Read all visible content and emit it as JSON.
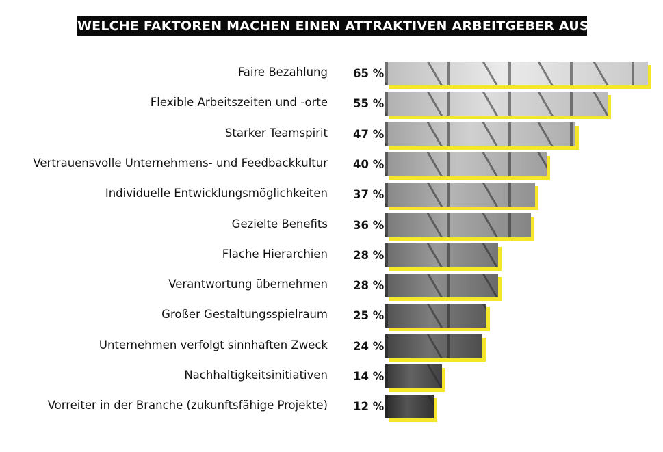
{
  "chart_data": {
    "type": "bar",
    "orientation": "horizontal",
    "title": "WELCHE FAKTOREN MACHEN EINEN ATTRAKTIVEN ARBEITGEBER AUS?",
    "categories": [
      "Faire Bezahlung",
      "Flexible Arbeitszeiten und -orte",
      "Starker Teamspirit",
      "Vertrauensvolle Unternehmens- und Feedbackkultur",
      "Individuelle Entwicklungsmöglichkeiten",
      "Gezielte Benefits",
      "Flache Hierarchien",
      "Verantwortung übernehmen",
      "Großer Gestaltungsspielraum",
      "Unternehmen verfolgt sinnhaften Zweck",
      "Nachhaltigkeitsinitiativen",
      "Vorreiter in der Branche (zukunftsfähige Projekte)"
    ],
    "values": [
      65,
      55,
      47,
      40,
      37,
      36,
      28,
      28,
      25,
      24,
      14,
      12
    ],
    "value_labels": [
      "65 %",
      "55 %",
      "47 %",
      "40 %",
      "37 %",
      "36 %",
      "28 %",
      "28 %",
      "25 %",
      "24 %",
      "14 %",
      "12 %"
    ],
    "xlim": [
      0,
      65
    ],
    "unit": "%",
    "grid": false,
    "legend": "none",
    "colors": {
      "shadow": "#f6e629",
      "title_bg": "#0a0a0a",
      "title_text": "#ffffff"
    }
  }
}
